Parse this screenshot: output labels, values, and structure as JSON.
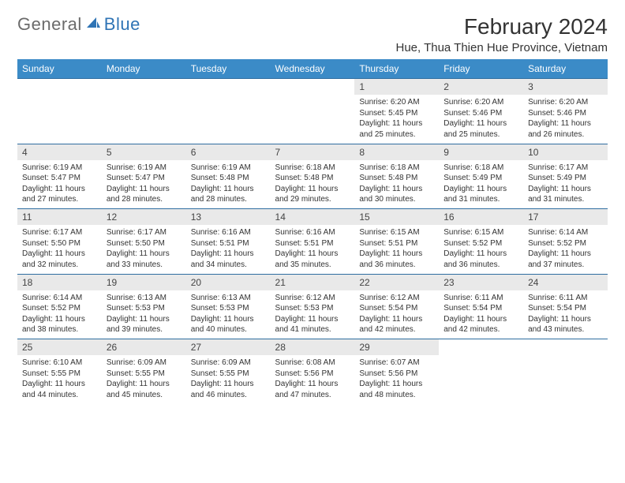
{
  "logo": {
    "text1": "General",
    "text2": "Blue"
  },
  "title": "February 2024",
  "location": "Hue, Thua Thien Hue Province, Vietnam",
  "colors": {
    "header_bg": "#3b8bc7",
    "header_text": "#ffffff",
    "daynum_bg": "#e9e9e9",
    "row_divider": "#2f6ea0",
    "body_text": "#333333",
    "logo_gray": "#6b6b6b",
    "logo_blue": "#2f74b5"
  },
  "day_headers": [
    "Sunday",
    "Monday",
    "Tuesday",
    "Wednesday",
    "Thursday",
    "Friday",
    "Saturday"
  ],
  "weeks": [
    [
      null,
      null,
      null,
      null,
      {
        "n": "1",
        "sunrise": "6:20 AM",
        "sunset": "5:45 PM",
        "dl": "11 hours and 25 minutes."
      },
      {
        "n": "2",
        "sunrise": "6:20 AM",
        "sunset": "5:46 PM",
        "dl": "11 hours and 25 minutes."
      },
      {
        "n": "3",
        "sunrise": "6:20 AM",
        "sunset": "5:46 PM",
        "dl": "11 hours and 26 minutes."
      }
    ],
    [
      {
        "n": "4",
        "sunrise": "6:19 AM",
        "sunset": "5:47 PM",
        "dl": "11 hours and 27 minutes."
      },
      {
        "n": "5",
        "sunrise": "6:19 AM",
        "sunset": "5:47 PM",
        "dl": "11 hours and 28 minutes."
      },
      {
        "n": "6",
        "sunrise": "6:19 AM",
        "sunset": "5:48 PM",
        "dl": "11 hours and 28 minutes."
      },
      {
        "n": "7",
        "sunrise": "6:18 AM",
        "sunset": "5:48 PM",
        "dl": "11 hours and 29 minutes."
      },
      {
        "n": "8",
        "sunrise": "6:18 AM",
        "sunset": "5:48 PM",
        "dl": "11 hours and 30 minutes."
      },
      {
        "n": "9",
        "sunrise": "6:18 AM",
        "sunset": "5:49 PM",
        "dl": "11 hours and 31 minutes."
      },
      {
        "n": "10",
        "sunrise": "6:17 AM",
        "sunset": "5:49 PM",
        "dl": "11 hours and 31 minutes."
      }
    ],
    [
      {
        "n": "11",
        "sunrise": "6:17 AM",
        "sunset": "5:50 PM",
        "dl": "11 hours and 32 minutes."
      },
      {
        "n": "12",
        "sunrise": "6:17 AM",
        "sunset": "5:50 PM",
        "dl": "11 hours and 33 minutes."
      },
      {
        "n": "13",
        "sunrise": "6:16 AM",
        "sunset": "5:51 PM",
        "dl": "11 hours and 34 minutes."
      },
      {
        "n": "14",
        "sunrise": "6:16 AM",
        "sunset": "5:51 PM",
        "dl": "11 hours and 35 minutes."
      },
      {
        "n": "15",
        "sunrise": "6:15 AM",
        "sunset": "5:51 PM",
        "dl": "11 hours and 36 minutes."
      },
      {
        "n": "16",
        "sunrise": "6:15 AM",
        "sunset": "5:52 PM",
        "dl": "11 hours and 36 minutes."
      },
      {
        "n": "17",
        "sunrise": "6:14 AM",
        "sunset": "5:52 PM",
        "dl": "11 hours and 37 minutes."
      }
    ],
    [
      {
        "n": "18",
        "sunrise": "6:14 AM",
        "sunset": "5:52 PM",
        "dl": "11 hours and 38 minutes."
      },
      {
        "n": "19",
        "sunrise": "6:13 AM",
        "sunset": "5:53 PM",
        "dl": "11 hours and 39 minutes."
      },
      {
        "n": "20",
        "sunrise": "6:13 AM",
        "sunset": "5:53 PM",
        "dl": "11 hours and 40 minutes."
      },
      {
        "n": "21",
        "sunrise": "6:12 AM",
        "sunset": "5:53 PM",
        "dl": "11 hours and 41 minutes."
      },
      {
        "n": "22",
        "sunrise": "6:12 AM",
        "sunset": "5:54 PM",
        "dl": "11 hours and 42 minutes."
      },
      {
        "n": "23",
        "sunrise": "6:11 AM",
        "sunset": "5:54 PM",
        "dl": "11 hours and 42 minutes."
      },
      {
        "n": "24",
        "sunrise": "6:11 AM",
        "sunset": "5:54 PM",
        "dl": "11 hours and 43 minutes."
      }
    ],
    [
      {
        "n": "25",
        "sunrise": "6:10 AM",
        "sunset": "5:55 PM",
        "dl": "11 hours and 44 minutes."
      },
      {
        "n": "26",
        "sunrise": "6:09 AM",
        "sunset": "5:55 PM",
        "dl": "11 hours and 45 minutes."
      },
      {
        "n": "27",
        "sunrise": "6:09 AM",
        "sunset": "5:55 PM",
        "dl": "11 hours and 46 minutes."
      },
      {
        "n": "28",
        "sunrise": "6:08 AM",
        "sunset": "5:56 PM",
        "dl": "11 hours and 47 minutes."
      },
      {
        "n": "29",
        "sunrise": "6:07 AM",
        "sunset": "5:56 PM",
        "dl": "11 hours and 48 minutes."
      },
      null,
      null
    ]
  ],
  "labels": {
    "sunrise": "Sunrise:",
    "sunset": "Sunset:",
    "daylight": "Daylight:"
  }
}
